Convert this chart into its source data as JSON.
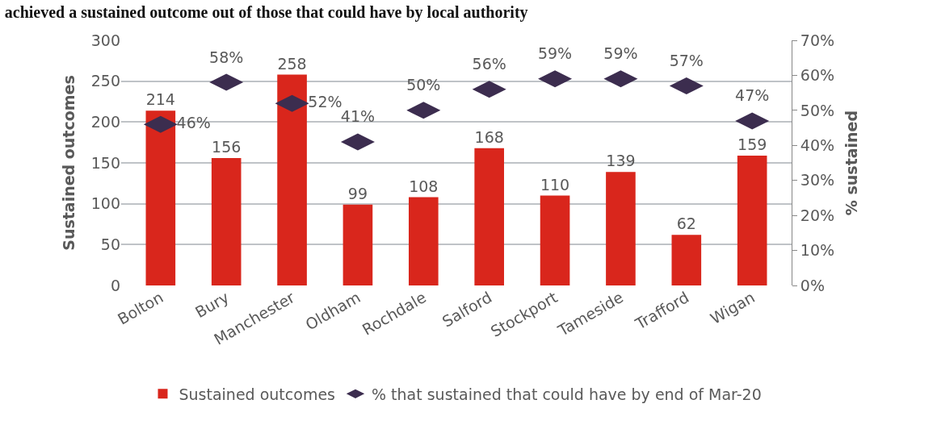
{
  "chart_data": {
    "type": "bar",
    "title": "achieved a sustained outcome out of those that could have by local authority",
    "categories": [
      "Bolton",
      "Bury",
      "Manchester",
      "Oldham",
      "Rochdale",
      "Salford",
      "Stockport",
      "Tameside",
      "Trafford",
      "Wigan"
    ],
    "series": [
      {
        "name": "Sustained outcomes",
        "color": "#d9261c",
        "values": [
          214,
          156,
          258,
          99,
          108,
          168,
          110,
          139,
          62,
          159
        ]
      },
      {
        "name": "% that sustained that could have by end of Mar-20",
        "type": "scatter",
        "axis": "y2",
        "color": "#3c2d4f",
        "values": [
          46,
          58,
          52,
          41,
          50,
          56,
          59,
          59,
          57,
          47
        ],
        "value_labels": [
          "46%",
          "58%",
          "52%",
          "41%",
          "50%",
          "56%",
          "59%",
          "59%",
          "57%",
          "47%"
        ]
      }
    ],
    "data_labels": true,
    "ylabel": "Sustained outcomes",
    "y2label": "% sustained",
    "ylim": [
      0,
      300
    ],
    "yticks": [
      0,
      50,
      100,
      150,
      200,
      250,
      300
    ],
    "y2lim": [
      0,
      70
    ],
    "y2ticks": [
      {
        "value": 0,
        "label": "0%"
      },
      {
        "value": 10,
        "label": "10%"
      },
      {
        "value": 20,
        "label": "20%"
      },
      {
        "value": 30,
        "label": "30%"
      },
      {
        "value": 40,
        "label": "40%"
      },
      {
        "value": 50,
        "label": "50%"
      },
      {
        "value": 60,
        "label": "60%"
      },
      {
        "value": 70,
        "label": "70%"
      }
    ],
    "grid": "y",
    "legend": "bottom"
  }
}
